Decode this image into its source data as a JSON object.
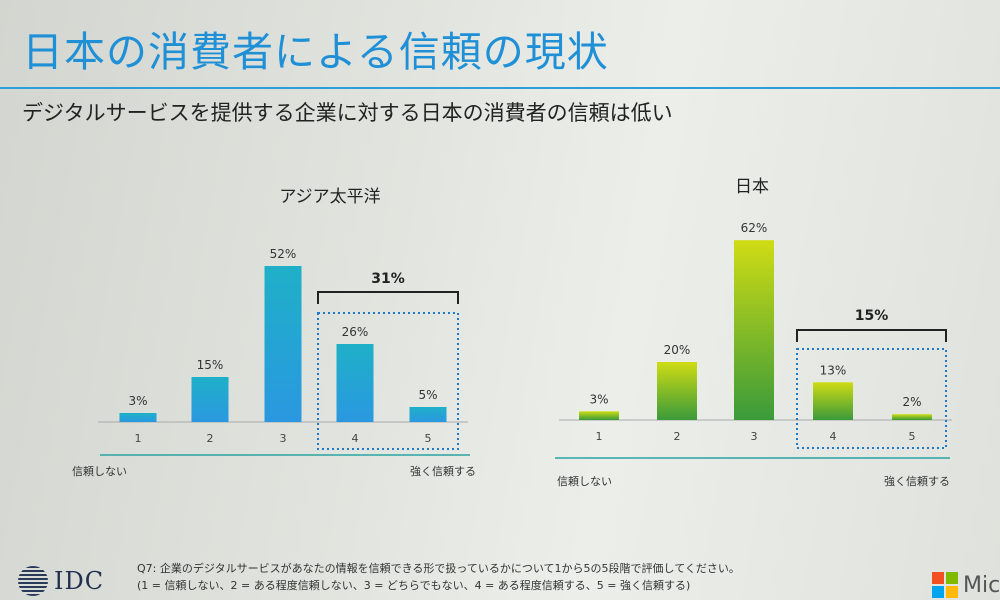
{
  "title": "日本の消費者による信頼の現状",
  "subtitle": "デジタルサービスを提供する企業に対する日本の消費者の信頼は低い",
  "footnote": {
    "line1": "Q7: 企業のデジタルサービスがあなたの情報を信頼できる形で扱っているかについて1から5の5段階で評価してください。",
    "line2": "(1 = 信頼しない、2 = ある程度信頼しない、3 = どちらでもない、4 = ある程度信頼する、5 = 強く信頼する)"
  },
  "logos": {
    "idc": "IDC",
    "microsoft": "Mic"
  },
  "colors": {
    "title": "#1f8fd6",
    "apac_bar": "#2aa3dc",
    "japan_bar_top": "#c9d818",
    "japan_bar_bottom": "#3a9a3a",
    "bracket": "#222222",
    "dotted_box": "#1f78c8"
  },
  "chart_data": [
    {
      "type": "bar",
      "title": "アジア太平洋",
      "categories": [
        "1",
        "2",
        "3",
        "4",
        "5"
      ],
      "values": [
        3,
        15,
        52,
        26,
        5
      ],
      "value_labels": [
        "3%",
        "15%",
        "52%",
        "26%",
        "5%"
      ],
      "unit": "%",
      "ylim": [
        0,
        62
      ],
      "x_left_label": "信頼しない",
      "x_right_label": "強く信頼する",
      "highlight": {
        "categories": [
          "4",
          "5"
        ],
        "total_label": "31%"
      }
    },
    {
      "type": "bar",
      "title": "日本",
      "categories": [
        "1",
        "2",
        "3",
        "4",
        "5"
      ],
      "values": [
        3,
        20,
        62,
        13,
        2
      ],
      "value_labels": [
        "3%",
        "20%",
        "62%",
        "13%",
        "2%"
      ],
      "unit": "%",
      "ylim": [
        0,
        62
      ],
      "x_left_label": "信頼しない",
      "x_right_label": "強く信頼する",
      "highlight": {
        "categories": [
          "4",
          "5"
        ],
        "total_label": "15%"
      }
    }
  ]
}
